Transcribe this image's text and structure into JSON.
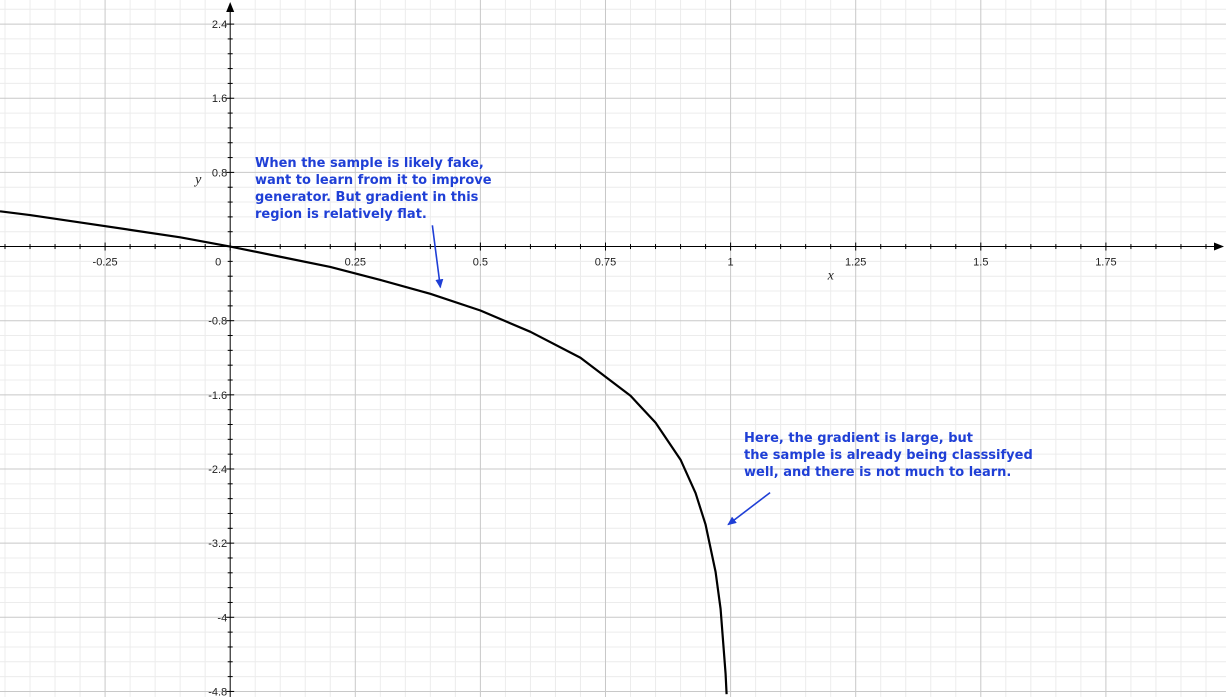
{
  "chart_data": {
    "type": "line",
    "xlabel": "x",
    "ylabel": "y",
    "xlim": [
      -0.46,
      1.99
    ],
    "ylim": [
      -4.86,
      2.66
    ],
    "grid": true,
    "x_ticks": [
      -0.25,
      0,
      0.25,
      0.5,
      0.75,
      1,
      1.25,
      1.5,
      1.75
    ],
    "x_tick_labels": [
      "-0.25",
      "0",
      "0.25",
      "0.5",
      "0.75",
      "1",
      "1.25",
      "1.5",
      "1.75"
    ],
    "y_ticks": [
      2.4,
      1.6,
      0.8,
      -0.8,
      -1.6,
      -2.4,
      -3.2,
      -4,
      -4.8
    ],
    "y_tick_labels": [
      "2.4",
      "1.6",
      "0.8",
      "-0.8",
      "-1.6",
      "-2.4",
      "-3.2",
      "-4",
      "-4.8"
    ],
    "series": [
      {
        "color": "#000000",
        "x": [
          -0.46,
          -0.4,
          -0.3,
          -0.2,
          -0.1,
          0,
          0.1,
          0.2,
          0.3,
          0.4,
          0.5,
          0.6,
          0.7,
          0.8,
          0.85,
          0.9,
          0.93,
          0.95,
          0.97,
          0.98,
          0.99,
          0.992
        ],
        "y": [
          0.38,
          0.34,
          0.26,
          0.18,
          0.1,
          0,
          -0.11,
          -0.22,
          -0.36,
          -0.51,
          -0.69,
          -0.92,
          -1.2,
          -1.61,
          -1.9,
          -2.3,
          -2.66,
          -3.0,
          -3.51,
          -3.91,
          -4.61,
          -4.83
        ]
      }
    ],
    "annotations": [
      {
        "lines": [
          "When the sample is likely fake,",
          "want to learn from it to improve",
          "generator. But gradient in this",
          "region is relatively flat."
        ],
        "target": [
          0.42,
          -0.44
        ],
        "color": "#1f3fd6"
      },
      {
        "lines": [
          "Here, the gradient is large, but",
          "the sample is already being classsifyed",
          "well, and there is not much to learn."
        ],
        "target": [
          0.995,
          -3.0
        ],
        "color": "#1f3fd6"
      }
    ]
  }
}
